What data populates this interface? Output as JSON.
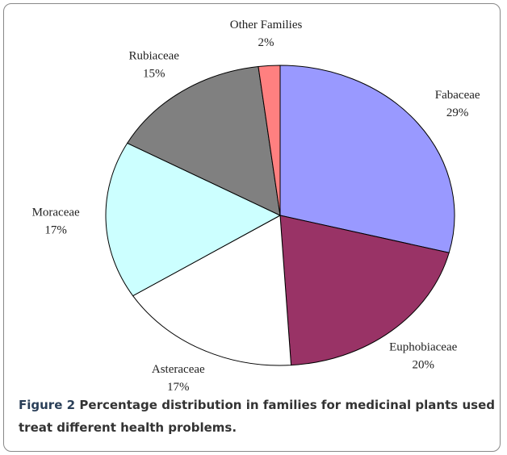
{
  "chart_data": {
    "type": "pie",
    "categories": [
      "Fabaceae",
      "Euphobiaceae",
      "Asteraceae",
      "Moraceae",
      "Rubiaceae",
      "Other Families"
    ],
    "values": [
      29,
      20,
      17,
      17,
      15,
      2
    ],
    "value_labels": [
      "29%",
      "20%",
      "17%",
      "17%",
      "15%",
      "2%"
    ],
    "colors": [
      "#9999ff",
      "#993366",
      "#ffffff",
      "#ccffff",
      "#808080",
      "#ff8080"
    ]
  },
  "caption": {
    "label": "Figure 2",
    "text": "Percentage distribution in families for medicinal plants used treat different health problems."
  }
}
